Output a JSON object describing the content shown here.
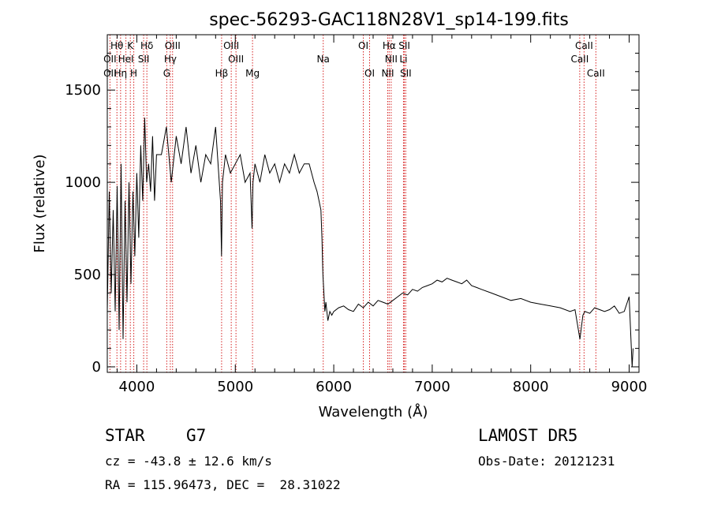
{
  "chart_data": {
    "type": "line",
    "title": "spec-56293-GAC118N28V1_sp14-199.fits",
    "xlabel": "Wavelength (Å)",
    "ylabel": "Flux (relative)",
    "xlim": [
      3700,
      9100
    ],
    "ylim": [
      -30,
      1800
    ],
    "xticks": [
      4000,
      5000,
      6000,
      7000,
      8000,
      9000
    ],
    "yticks": [
      0,
      500,
      1000,
      1500
    ],
    "grid": false,
    "series": [
      {
        "x": [
          3700,
          3720,
          3740,
          3760,
          3780,
          3800,
          3820,
          3840,
          3860,
          3880,
          3900,
          3920,
          3940,
          3960,
          3980,
          4000,
          4020,
          4040,
          4060,
          4080,
          4100,
          4120,
          4140,
          4160,
          4180,
          4200,
          4250,
          4300,
          4350,
          4400,
          4450,
          4500,
          4550,
          4600,
          4650,
          4700,
          4750,
          4800,
          4850,
          4860,
          4870,
          4900,
          4950,
          5000,
          5050,
          5100,
          5150,
          5170,
          5180,
          5200,
          5250,
          5300,
          5350,
          5400,
          5450,
          5500,
          5550,
          5600,
          5650,
          5700,
          5750,
          5800,
          5830,
          5850,
          5870,
          5880,
          5890,
          5900,
          5910,
          5920,
          5940,
          5960,
          5980,
          6000,
          6050,
          6100,
          6150,
          6200,
          6250,
          6300,
          6350,
          6400,
          6450,
          6500,
          6550,
          6600,
          6650,
          6700,
          6750,
          6800,
          6850,
          6900,
          6950,
          7000,
          7050,
          7100,
          7150,
          7200,
          7250,
          7300,
          7350,
          7400,
          7450,
          7500,
          7600,
          7700,
          7800,
          7900,
          8000,
          8100,
          8200,
          8300,
          8400,
          8450,
          8500,
          8530,
          8550,
          8600,
          8650,
          8700,
          8750,
          8800,
          8850,
          8900,
          8950,
          9000,
          9030,
          9040
        ],
        "y": [
          300,
          950,
          400,
          850,
          300,
          980,
          200,
          1100,
          150,
          900,
          350,
          1000,
          450,
          950,
          600,
          1050,
          700,
          1200,
          900,
          1350,
          1000,
          1100,
          950,
          1250,
          900,
          1150,
          1150,
          1300,
          1000,
          1250,
          1100,
          1300,
          1050,
          1200,
          1000,
          1150,
          1100,
          1300,
          900,
          600,
          1000,
          1150,
          1050,
          1100,
          1150,
          1000,
          1050,
          750,
          1000,
          1100,
          1000,
          1150,
          1050,
          1100,
          1000,
          1100,
          1050,
          1150,
          1050,
          1100,
          1100,
          1000,
          950,
          900,
          850,
          700,
          500,
          400,
          300,
          350,
          250,
          300,
          280,
          300,
          320,
          330,
          310,
          300,
          340,
          320,
          350,
          330,
          360,
          350,
          340,
          360,
          380,
          400,
          390,
          420,
          410,
          430,
          440,
          450,
          470,
          460,
          480,
          470,
          460,
          450,
          470,
          440,
          430,
          420,
          400,
          380,
          360,
          370,
          350,
          340,
          330,
          320,
          300,
          310,
          150,
          280,
          300,
          290,
          320,
          310,
          300,
          310,
          330,
          290,
          300,
          380,
          0,
          100
        ]
      }
    ],
    "annotations": [
      {
        "text": "Hθ",
        "x": 3798,
        "row": 1
      },
      {
        "text": "K",
        "x": 3934,
        "row": 1
      },
      {
        "text": "Hδ",
        "x": 4102,
        "row": 1
      },
      {
        "text": "OIII",
        "x": 4363,
        "row": 1
      },
      {
        "text": "OIII",
        "x": 4959,
        "row": 1
      },
      {
        "text": "OI",
        "x": 6300,
        "row": 1
      },
      {
        "text": "Hα",
        "x": 6563,
        "row": 1
      },
      {
        "text": "SII",
        "x": 6717,
        "row": 1
      },
      {
        "text": "CaII",
        "x": 8542,
        "row": 1
      },
      {
        "text": "OII",
        "x": 3727,
        "row": 2
      },
      {
        "text": "HeI",
        "x": 3889,
        "row": 2
      },
      {
        "text": "SII",
        "x": 4069,
        "row": 2
      },
      {
        "text": "Hγ",
        "x": 4340,
        "row": 2
      },
      {
        "text": "OIII",
        "x": 5007,
        "row": 2
      },
      {
        "text": "Na",
        "x": 5893,
        "row": 2
      },
      {
        "text": "NII",
        "x": 6583,
        "row": 2
      },
      {
        "text": "Li",
        "x": 6708,
        "row": 2
      },
      {
        "text": "CaII",
        "x": 8498,
        "row": 2
      },
      {
        "text": "OII",
        "x": 3727,
        "row": 3
      },
      {
        "text": "Hη",
        "x": 3835,
        "row": 3
      },
      {
        "text": "H",
        "x": 3969,
        "row": 3
      },
      {
        "text": "G",
        "x": 4304,
        "row": 3
      },
      {
        "text": "Hβ",
        "x": 4861,
        "row": 3
      },
      {
        "text": "Mg",
        "x": 5175,
        "row": 3
      },
      {
        "text": "OI",
        "x": 6364,
        "row": 3
      },
      {
        "text": "NII",
        "x": 6548,
        "row": 3
      },
      {
        "text": "SII",
        "x": 6731,
        "row": 3
      },
      {
        "text": "CaII",
        "x": 8662,
        "row": 3
      }
    ],
    "line_markers": [
      3727,
      3798,
      3835,
      3889,
      3934,
      3969,
      4069,
      4102,
      4304,
      4340,
      4363,
      4861,
      4959,
      5007,
      5175,
      5893,
      6300,
      6364,
      6548,
      6563,
      6583,
      6708,
      6717,
      6731,
      8498,
      8542,
      8662
    ],
    "colors": {
      "marker": "#d62020",
      "spectrum": "#000000"
    }
  },
  "info": {
    "class": "STAR",
    "subclass": "G7",
    "survey": "LAMOST DR5",
    "velocity": "cz = -43.8 ± 12.6 km/s",
    "obs_date": "Obs-Date: 20121231",
    "coords": "RA = 115.96473, DEC =  28.31022"
  }
}
